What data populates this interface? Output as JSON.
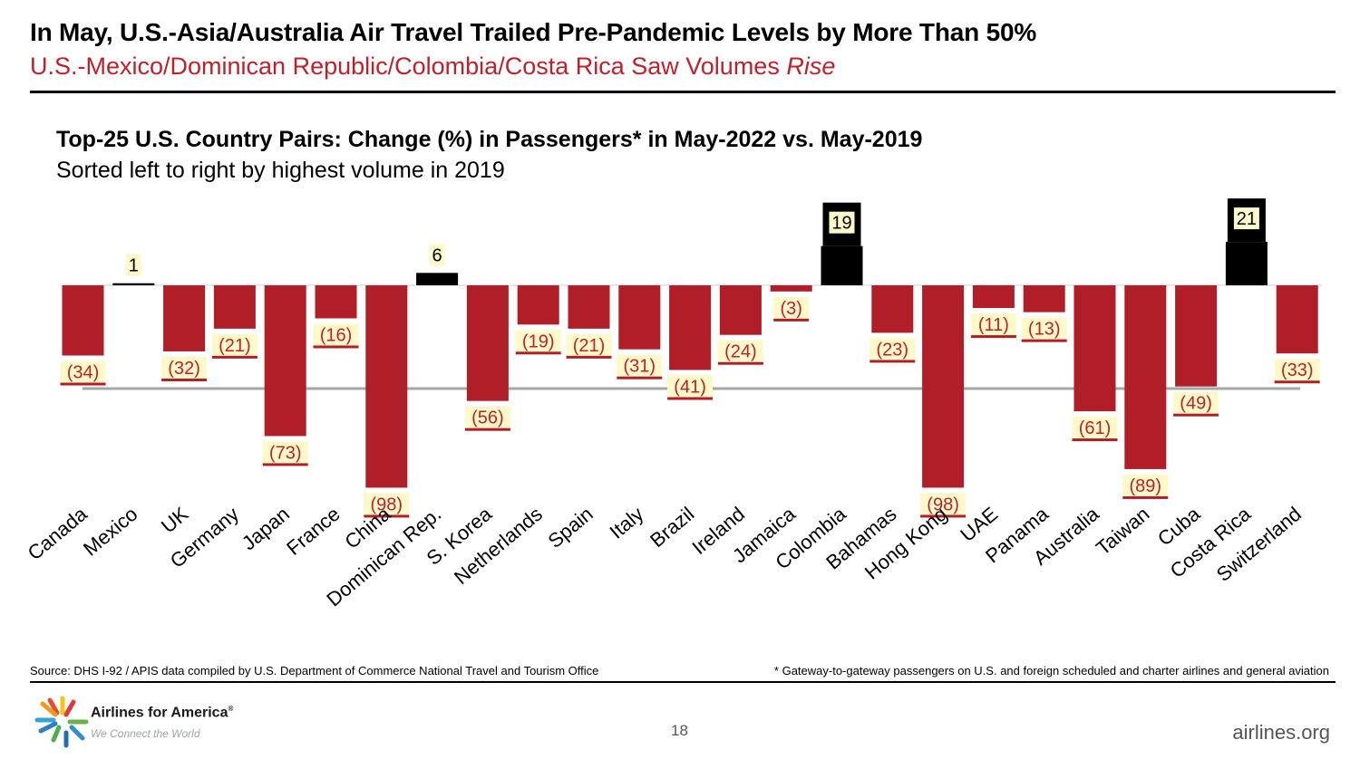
{
  "slide": {
    "headline": "In May, U.S.-Asia/Australia Air Travel Trailed Pre-Pandemic Levels by More Than 50%",
    "subheadline_main": "U.S.-Mexico/Dominican Republic/Colombia/Costa Rica Saw Volumes ",
    "subheadline_emph": "Rise",
    "source": "Source: DHS I-92 / APIS data compiled by U.S. Department of Commerce National Travel and Tourism Office",
    "footnote": "* Gateway-to-gateway passengers on U.S. and foreign scheduled and charter airlines and general aviation",
    "logo_name": "Airlines for America",
    "logo_tagline": "We Connect the World",
    "page_number": "18",
    "website": "airlines.org"
  },
  "chart_data": {
    "type": "bar",
    "title": "Top-25 U.S. Country Pairs: Change (%) in Passengers* in May-2022 vs. May-2019",
    "subtitle": "Sorted left to right by highest volume in 2019",
    "categories": [
      "Canada",
      "Mexico",
      "UK",
      "Germany",
      "Japan",
      "France",
      "China",
      "Dominican Rep.",
      "S. Korea",
      "Netherlands",
      "Spain",
      "Italy",
      "Brazil",
      "Ireland",
      "Jamaica",
      "Colombia",
      "Bahamas",
      "Hong Kong",
      "UAE",
      "Panama",
      "Australia",
      "Taiwan",
      "Cuba",
      "Costa Rica",
      "Switzerland"
    ],
    "values": [
      -34,
      1,
      -32,
      -21,
      -73,
      -16,
      -98,
      6,
      -56,
      -19,
      -21,
      -31,
      -41,
      -24,
      -3,
      19,
      -23,
      -98,
      -11,
      -13,
      -61,
      -89,
      -49,
      21,
      -33
    ],
    "data_labels": [
      "(34)",
      "1",
      "(32)",
      "(21)",
      "(73)",
      "(16)",
      "(98)",
      "6",
      "(56)",
      "(19)",
      "(21)",
      "(31)",
      "(41)",
      "(24)",
      "(3)",
      "19",
      "(23)",
      "(98)",
      "(11)",
      "(13)",
      "(61)",
      "(89)",
      "(49)",
      "21",
      "(33)"
    ],
    "reference_line": -50,
    "colors": {
      "negative": "#b01e28",
      "positive": "#000000",
      "label_bg": "#fdf9c8",
      "label_text_negative": "#c0202a",
      "reference_line": "#a6a6a6"
    }
  }
}
